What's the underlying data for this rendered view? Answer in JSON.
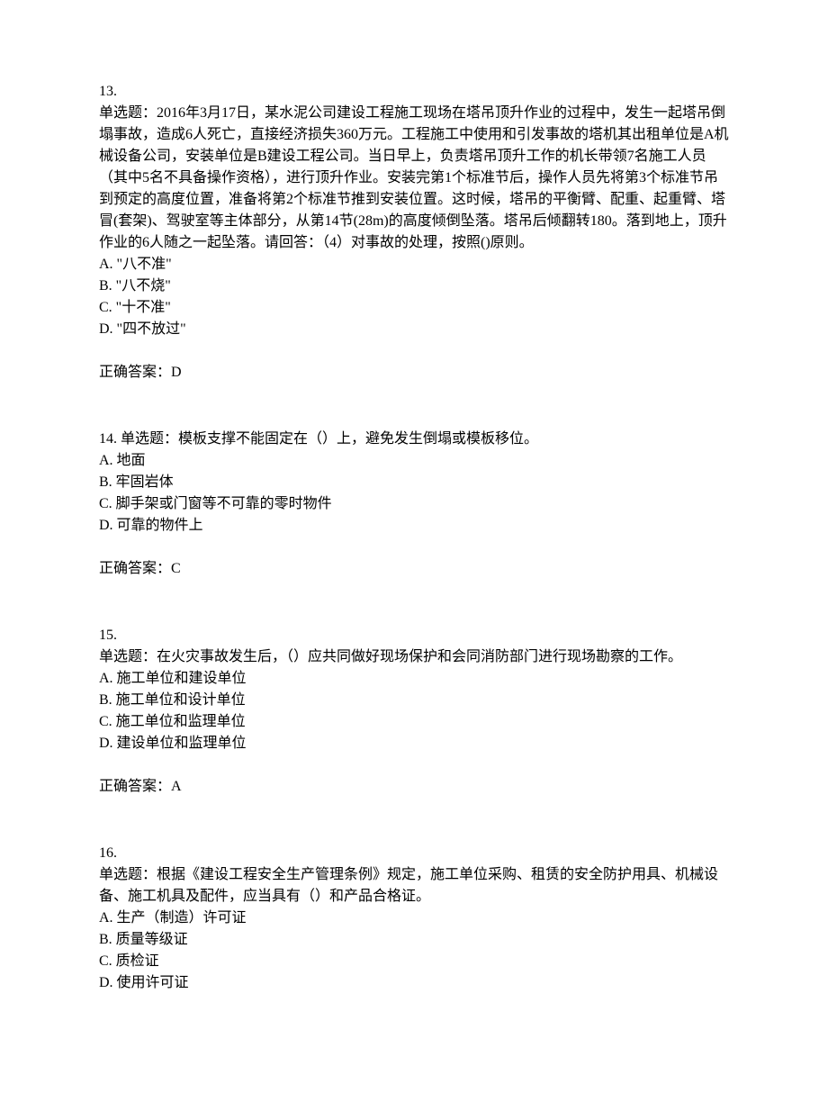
{
  "questions": [
    {
      "number": "13.",
      "stem": "单选题：2016年3月17日，某水泥公司建设工程施工现场在塔吊顶升作业的过程中，发生一起塔吊倒塌事故，造成6人死亡，直接经济损失360万元。工程施工中使用和引发事故的塔机其出租单位是A机械设备公司，安装单位是B建设工程公司。当日早上，负责塔吊顶升工作的机长带领7名施工人员（其中5名不具备操作资格），进行顶升作业。安装完第1个标准节后，操作人员先将第3个标准节吊到预定的高度位置，准备将第2个标准节推到安装位置。这时候，塔吊的平衡臂、配重、起重臂、塔冒(套架)、驾驶室等主体部分，从第14节(28m)的高度倾倒坠落。塔吊后倾翻转180。落到地上，顶升作业的6人随之一起坠落。请回答：（4）对事故的处理，按照()原则。",
      "options": [
        "A. \"八不准\"",
        "B. \"八不烧\"",
        "C. \"十不准\"",
        "D. \"四不放过\""
      ],
      "answer": "正确答案：D"
    },
    {
      "number": "14.  ",
      "stem": "单选题：模板支撑不能固定在（）上，避免发生倒塌或模板移位。",
      "options": [
        "A. 地面",
        "B. 牢固岩体",
        "C. 脚手架或门窗等不可靠的零时物件",
        "D. 可靠的物件上"
      ],
      "answer": "正确答案：C"
    },
    {
      "number": "15.",
      "stem": "单选题：在火灾事故发生后，（）应共同做好现场保护和会同消防部门进行现场勘察的工作。",
      "options": [
        "A. 施工单位和建设单位",
        "B. 施工单位和设计单位",
        "C. 施工单位和监理单位",
        "D. 建设单位和监理单位"
      ],
      "answer": "正确答案：A"
    },
    {
      "number": "16.",
      "stem": "单选题：根据《建设工程安全生产管理条例》规定，施工单位采购、租赁的安全防护用具、机械设备、施工机具及配件，应当具有（）和产品合格证。",
      "options": [
        "A. 生产（制造）许可证",
        "B. 质量等级证",
        "C. 质检证",
        "D. 使用许可证"
      ],
      "answer": ""
    }
  ]
}
